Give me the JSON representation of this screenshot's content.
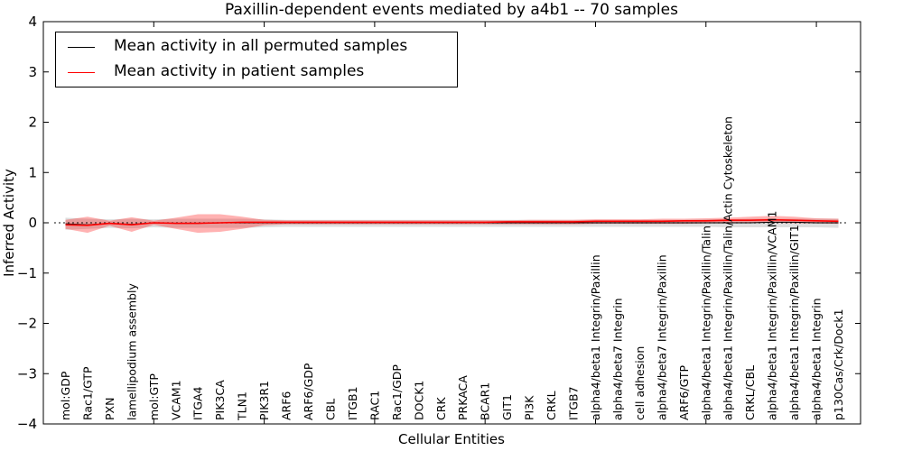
{
  "chart_data": {
    "type": "line",
    "title": "Paxillin-dependent events mediated by a4b1 -- 70 samples",
    "xlabel": "Cellular Entities",
    "ylabel": "Inferred Activity",
    "ylim": [
      -4,
      4
    ],
    "yticks": [
      4,
      3,
      2,
      1,
      0,
      -1,
      -2,
      -3,
      -4
    ],
    "xticks_numeric": [
      5,
      10,
      15,
      20,
      25,
      30,
      35
    ],
    "grid": false,
    "legend_position": "upper left",
    "zero_line": {
      "y": 0,
      "style": "dotted",
      "color": "#000000"
    },
    "categories": [
      "mol:GDP",
      "Rac1/GTP",
      "PXN",
      "lamellipodium assembly",
      "mol:GTP",
      "VCAM1",
      "ITGA4",
      "PIK3CA",
      "TLN1",
      "PIK3R1",
      "ARF6",
      "ARF6/GDP",
      "CBL",
      "ITGB1",
      "RAC1",
      "Rac1/GDP",
      "DOCK1",
      "CRK",
      "PRKACA",
      "BCAR1",
      "GIT1",
      "PI3K",
      "CRKL",
      "ITGB7",
      "alpha4/beta1 Integrin/Paxillin",
      "alpha4/beta7 Integrin",
      "cell adhesion",
      "alpha4/beta7 Integrin/Paxillin",
      "ARF6/GTP",
      "alpha4/beta1 Integrin/Paxillin/Talin",
      "alpha4/beta1 Integrin/Paxillin/Talin/Actin Cytoskeleton",
      "CRKL/CBL",
      "alpha4/beta1 Integrin/Paxillin/VCAM1",
      "alpha4/beta1 Integrin/Paxillin/GIT1",
      "alpha4/beta1 Integrin",
      "p130Cas/Crk/Dock1"
    ],
    "series": [
      {
        "name": "Mean activity in all permuted samples",
        "color": "#000000",
        "band_color": "rgba(0,0,0,0.13)",
        "values": [
          -0.02,
          -0.04,
          -0.01,
          -0.03,
          0.0,
          -0.01,
          -0.01,
          0.0,
          0.0,
          0.0,
          0.0,
          0.0,
          0.0,
          0.0,
          0.0,
          0.0,
          0.0,
          0.0,
          0.0,
          0.0,
          0.0,
          0.0,
          0.0,
          0.0,
          0.0,
          0.0,
          0.0,
          0.0,
          0.0,
          0.0,
          0.0,
          0.0,
          0.01,
          0.01,
          0.0,
          0.0
        ],
        "band_lo": [
          -0.14,
          -0.12,
          -0.1,
          -0.11,
          -0.09,
          -0.1,
          -0.1,
          -0.1,
          -0.1,
          -0.09,
          -0.08,
          -0.08,
          -0.08,
          -0.08,
          -0.08,
          -0.08,
          -0.08,
          -0.08,
          -0.08,
          -0.08,
          -0.08,
          -0.08,
          -0.08,
          -0.08,
          -0.08,
          -0.08,
          -0.08,
          -0.08,
          -0.08,
          -0.08,
          -0.09,
          -0.09,
          -0.09,
          -0.09,
          -0.09,
          -0.1
        ],
        "band_hi": [
          0.1,
          0.08,
          0.07,
          0.08,
          0.07,
          0.08,
          0.08,
          0.08,
          0.08,
          0.07,
          0.06,
          0.06,
          0.06,
          0.06,
          0.06,
          0.06,
          0.06,
          0.06,
          0.06,
          0.06,
          0.06,
          0.06,
          0.06,
          0.06,
          0.06,
          0.06,
          0.06,
          0.06,
          0.06,
          0.07,
          0.07,
          0.08,
          0.08,
          0.08,
          0.08,
          0.08
        ]
      },
      {
        "name": "Mean activity in patient samples",
        "color": "#ff0000",
        "band_color": "rgba(255,0,0,0.30)",
        "values": [
          -0.04,
          -0.05,
          -0.01,
          -0.04,
          0.0,
          -0.01,
          -0.01,
          0.0,
          0.01,
          0.01,
          0.01,
          0.01,
          0.01,
          0.01,
          0.01,
          0.01,
          0.01,
          0.01,
          0.01,
          0.01,
          0.02,
          0.02,
          0.02,
          0.02,
          0.03,
          0.03,
          0.03,
          0.03,
          0.04,
          0.04,
          0.05,
          0.05,
          0.06,
          0.05,
          0.04,
          0.03
        ],
        "band_lo": [
          -0.12,
          -0.2,
          -0.06,
          -0.18,
          -0.04,
          -0.12,
          -0.2,
          -0.18,
          -0.12,
          -0.05,
          -0.03,
          -0.03,
          -0.03,
          -0.03,
          -0.03,
          -0.03,
          -0.03,
          -0.03,
          -0.03,
          -0.03,
          -0.03,
          -0.03,
          -0.03,
          -0.03,
          -0.02,
          -0.02,
          -0.02,
          -0.02,
          -0.02,
          -0.01,
          -0.01,
          0.0,
          0.0,
          -0.01,
          -0.01,
          -0.02
        ],
        "band_hi": [
          0.06,
          0.12,
          0.04,
          0.11,
          0.04,
          0.1,
          0.17,
          0.17,
          0.12,
          0.06,
          0.05,
          0.05,
          0.05,
          0.05,
          0.05,
          0.05,
          0.05,
          0.05,
          0.05,
          0.05,
          0.05,
          0.06,
          0.06,
          0.06,
          0.07,
          0.07,
          0.07,
          0.08,
          0.08,
          0.09,
          0.1,
          0.12,
          0.14,
          0.12,
          0.09,
          0.08
        ]
      }
    ]
  }
}
